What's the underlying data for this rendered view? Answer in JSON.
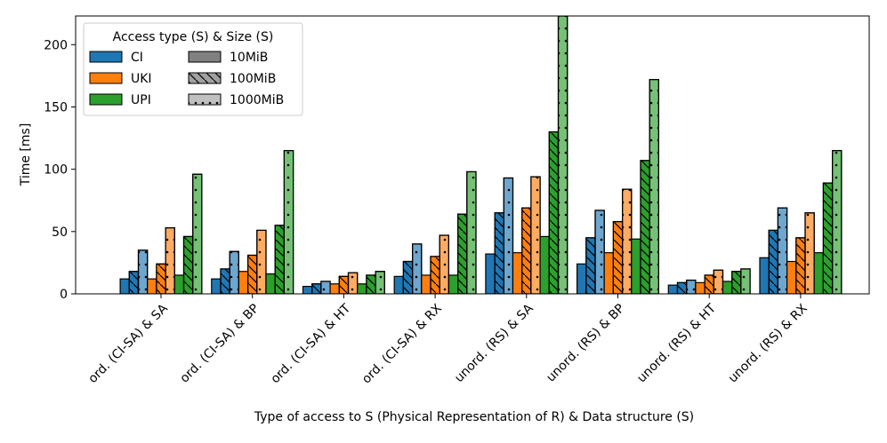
{
  "chart_data": {
    "type": "bar",
    "title": "",
    "xlabel": "Type of access to S (Physical Representation of R) & Data structure (S)",
    "ylabel": "Time [ms]",
    "ylim": [
      0,
      223
    ],
    "yticks": [
      0,
      50,
      100,
      150,
      200
    ],
    "grid": false,
    "categories": [
      "ord. (CI-SA) & SA",
      "ord. (CI-SA) & BP",
      "ord. (CI-SA) & HT",
      "ord. (CI-SA) & RX",
      "unord. (RS) & SA",
      "unord. (RS) & BP",
      "unord. (RS) & HT",
      "unord. (RS) & RX"
    ],
    "legend": {
      "title": "Access type (S) & Size (S)",
      "placement": "top-left",
      "access_types": [
        {
          "label": "CI",
          "color": "#1f77b4"
        },
        {
          "label": "UKI",
          "color": "#ff7f0e"
        },
        {
          "label": "UPI",
          "color": "#2ca02c"
        }
      ],
      "sizes": [
        {
          "label": "10MiB",
          "pattern": "solid"
        },
        {
          "label": "100MiB",
          "pattern": "hatch"
        },
        {
          "label": "1000MiB",
          "pattern": "dots"
        }
      ]
    },
    "series": [
      {
        "name": "CI 10MiB",
        "access": "CI",
        "size": "10MiB",
        "values": [
          12,
          12,
          6,
          14,
          32,
          24,
          7,
          29
        ]
      },
      {
        "name": "CI 100MiB",
        "access": "CI",
        "size": "100MiB",
        "values": [
          18,
          20,
          8,
          26,
          65,
          45,
          9,
          51
        ]
      },
      {
        "name": "CI 1000MiB",
        "access": "CI",
        "size": "1000MiB",
        "values": [
          35,
          34,
          10,
          40,
          93,
          67,
          11,
          69
        ]
      },
      {
        "name": "UKI 10MiB",
        "access": "UKI",
        "size": "10MiB",
        "values": [
          12,
          18,
          8,
          15,
          33,
          33,
          9,
          26
        ]
      },
      {
        "name": "UKI 100MiB",
        "access": "UKI",
        "size": "100MiB",
        "values": [
          24,
          31,
          14,
          30,
          69,
          58,
          15,
          45
        ]
      },
      {
        "name": "UKI 1000MiB",
        "access": "UKI",
        "size": "1000MiB",
        "values": [
          53,
          51,
          17,
          47,
          94,
          84,
          19,
          65
        ]
      },
      {
        "name": "UPI 10MiB",
        "access": "UPI",
        "size": "10MiB",
        "values": [
          15,
          16,
          8,
          15,
          46,
          44,
          10,
          33
        ]
      },
      {
        "name": "UPI 100MiB",
        "access": "UPI",
        "size": "100MiB",
        "values": [
          46,
          55,
          15,
          64,
          130,
          107,
          18,
          89
        ]
      },
      {
        "name": "UPI 1000MiB",
        "access": "UPI",
        "size": "1000MiB",
        "values": [
          96,
          115,
          18,
          98,
          223,
          172,
          20,
          115
        ]
      }
    ]
  }
}
